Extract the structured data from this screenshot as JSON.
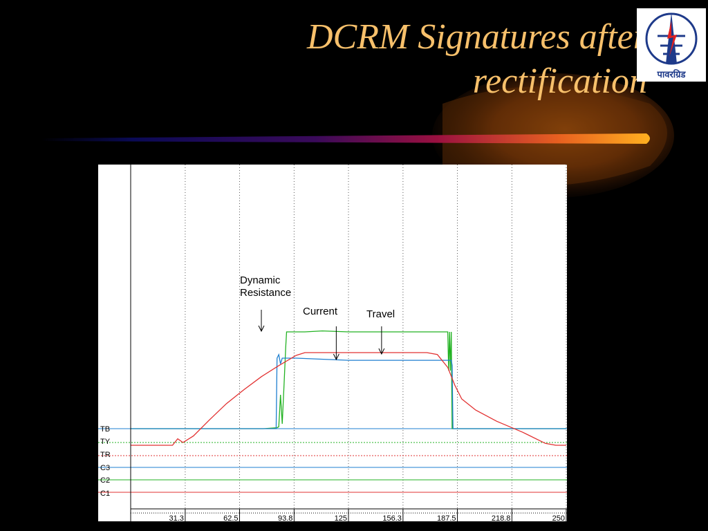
{
  "slide": {
    "title_line1": "DCRM Signatures after",
    "title_line2": "rectification",
    "title_color": "#F7C06B",
    "background_color": "#000000"
  },
  "logo": {
    "text": "पावरग्रिड",
    "icon": "powergrid-tower-logo-icon",
    "color": "#1E3A8A"
  },
  "chart_data": {
    "type": "line",
    "title": "",
    "xlabel": "",
    "ylabel": "",
    "xlim": [
      0,
      250
    ],
    "x_ticks": [
      "31.3",
      "62.5",
      "93.8",
      "125",
      "156.3",
      "187.5",
      "218.8",
      "250"
    ],
    "x_tick_values": [
      31.3,
      62.5,
      93.8,
      125,
      156.3,
      187.5,
      218.8,
      250
    ],
    "grid": "vertical-dotted",
    "channel_labels": [
      "TB",
      "TY",
      "TR",
      "C3",
      "C2",
      "C1"
    ],
    "annotations": [
      {
        "text": "Dynamic Resistance",
        "lines": [
          "Dynamic",
          "Resistance"
        ],
        "x": 75
      },
      {
        "text": "Current",
        "x": 118
      },
      {
        "text": "Travel",
        "x": 144
      }
    ],
    "series": [
      {
        "color": "#22B222",
        "kind": "dynamic-resistance",
        "points": [
          [
            0,
            0.0
          ],
          [
            76,
            0.0
          ],
          [
            84,
            0.01
          ],
          [
            85,
            0.02
          ],
          [
            86,
            0.35
          ],
          [
            87,
            0.05
          ],
          [
            88,
            0.45
          ],
          [
            89,
            0.85
          ],
          [
            89.5,
            1.0
          ],
          [
            100,
            1.0
          ],
          [
            110,
            1.01
          ],
          [
            125,
            1.0
          ],
          [
            140,
            1.0
          ],
          [
            170,
            1.0
          ],
          [
            182,
            1.0
          ],
          [
            182.5,
            0.6
          ],
          [
            183,
            1.0
          ],
          [
            183.5,
            0.6
          ],
          [
            184,
            1.0
          ],
          [
            184.5,
            0.0
          ],
          [
            250,
            0.0
          ]
        ]
      },
      {
        "color": "#1E7FD0",
        "kind": "current",
        "points": [
          [
            0,
            0.0
          ],
          [
            83.5,
            0.0
          ],
          [
            84,
            1.0
          ],
          [
            85,
            1.05
          ],
          [
            86,
            0.92
          ],
          [
            87,
            1.0
          ],
          [
            88,
            1.0
          ],
          [
            95,
            1.0
          ],
          [
            125,
            0.97
          ],
          [
            150,
            0.97
          ],
          [
            181,
            0.97
          ],
          [
            184,
            0.97
          ],
          [
            184.5,
            0.9
          ],
          [
            185,
            0.0
          ],
          [
            250,
            0.0
          ]
        ]
      },
      {
        "color": "#E23030",
        "kind": "travel",
        "points": [
          [
            0,
            0.0
          ],
          [
            24,
            0.0
          ],
          [
            27,
            0.07
          ],
          [
            30,
            0.03
          ],
          [
            36,
            0.1
          ],
          [
            45,
            0.27
          ],
          [
            55,
            0.45
          ],
          [
            65,
            0.6
          ],
          [
            75,
            0.74
          ],
          [
            85,
            0.86
          ],
          [
            95,
            0.97
          ],
          [
            100,
            1.0
          ],
          [
            115,
            1.0
          ],
          [
            120,
            1.0
          ],
          [
            130,
            1.0
          ],
          [
            170,
            1.0
          ],
          [
            176,
            0.98
          ],
          [
            182,
            0.84
          ],
          [
            186,
            0.65
          ],
          [
            190,
            0.5
          ],
          [
            198,
            0.38
          ],
          [
            210,
            0.26
          ],
          [
            225,
            0.14
          ],
          [
            238,
            0.02
          ],
          [
            244,
            0.0
          ],
          [
            250,
            0.0
          ]
        ]
      }
    ]
  }
}
